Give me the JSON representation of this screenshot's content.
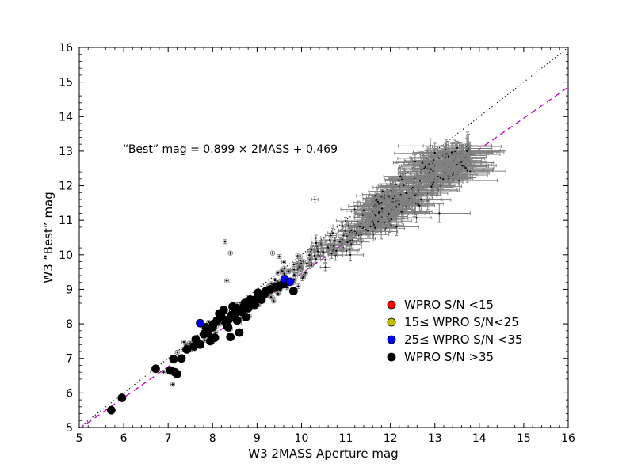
{
  "chart_data": {
    "type": "scatter",
    "title": "",
    "xlabel": "W3 2MASS Aperture mag",
    "ylabel": "W3 “Best” mag",
    "xlim": [
      5,
      16
    ],
    "ylim": [
      5,
      16
    ],
    "xticks": [
      "5",
      "6",
      "7",
      "8",
      "9",
      "10",
      "11",
      "12",
      "13",
      "14",
      "15",
      "16"
    ],
    "yticks": [
      "5",
      "6",
      "7",
      "8",
      "9",
      "10",
      "11",
      "12",
      "13",
      "14",
      "15",
      "16"
    ],
    "grid": false,
    "legend_position": "lower-right",
    "annotation": "“Best” mag = 0.899 × 2MASS + 0.469",
    "reference_lines": [
      {
        "style": "dotted",
        "color": "#000000",
        "slope": 1.0,
        "intercept": 0.0
      },
      {
        "style": "dashed",
        "color": "#bf00bf",
        "slope": 0.899,
        "intercept": 0.469
      }
    ],
    "legend": [
      {
        "label": "WPRO S/N <15",
        "color": "#ff0000"
      },
      {
        "label": "15≤ WPRO S/N<25",
        "color": "#bfbf00"
      },
      {
        "label": "25≤ WPRO S/N <35",
        "color": "#0000ff"
      },
      {
        "label": "WPRO S/N >35",
        "color": "#000000"
      }
    ],
    "series": [
      {
        "name": "WPRO S/N >35",
        "color": "#000000",
        "marker": "circle",
        "x": [
          5.72,
          5.96,
          6.72,
          7.05,
          7.12,
          7.2,
          7.15,
          7.3,
          7.42,
          7.58,
          7.62,
          7.72,
          7.8,
          7.85,
          7.9,
          7.95,
          8.0,
          8.02,
          8.05,
          8.1,
          8.15,
          8.2,
          8.25,
          8.3,
          8.35,
          8.38,
          8.42,
          8.45,
          8.5,
          8.52,
          8.55,
          8.6,
          8.65,
          8.7,
          8.72,
          8.75,
          8.8,
          8.85,
          8.9,
          8.95,
          9.0,
          9.02,
          9.05,
          9.1,
          9.15,
          9.2,
          9.3,
          9.4,
          9.5,
          9.6,
          9.82,
          8.4,
          8.32
        ],
        "y": [
          5.5,
          5.86,
          6.7,
          6.65,
          6.98,
          6.55,
          6.6,
          7.0,
          7.26,
          7.35,
          7.55,
          7.4,
          7.7,
          7.9,
          7.72,
          7.5,
          7.9,
          8.0,
          7.6,
          8.1,
          8.3,
          8.2,
          8.4,
          8.05,
          7.9,
          8.15,
          8.25,
          8.5,
          8.3,
          8.45,
          8.1,
          7.75,
          8.35,
          8.5,
          8.6,
          8.2,
          8.45,
          8.7,
          8.6,
          8.55,
          8.75,
          8.9,
          8.8,
          8.7,
          8.85,
          8.95,
          9.0,
          9.05,
          9.1,
          9.15,
          8.95,
          7.62,
          7.95
        ]
      },
      {
        "name": "25≤ WPRO S/N <35",
        "color": "#0000ff",
        "marker": "circle",
        "x": [
          7.72,
          9.62,
          9.74
        ],
        "y": [
          8.02,
          9.3,
          9.22
        ]
      },
      {
        "name": "WPRO S/N <15",
        "color": "#ff0000",
        "marker": "circle",
        "x": [],
        "y": []
      },
      {
        "name": "15≤ WPRO S/N<25",
        "color": "#bfbf00",
        "marker": "circle",
        "x": [],
        "y": []
      },
      {
        "name": "",
        "color": "#808080",
        "marker": "errorbar",
        "description": "dense cloud of small gray error-bar points along the 1:1 relation, x from about 7 to 14, error bars growing with magnitude",
        "x_range": [
          7.0,
          14.0
        ],
        "outliers": [
          {
            "x": 8.28,
            "y": 10.38
          },
          {
            "x": 8.32,
            "y": 9.25
          },
          {
            "x": 8.4,
            "y": 10.05
          },
          {
            "x": 9.35,
            "y": 10.05
          },
          {
            "x": 9.5,
            "y": 9.95
          },
          {
            "x": 10.3,
            "y": 11.6
          },
          {
            "x": 7.1,
            "y": 6.25
          },
          {
            "x": 6.9,
            "y": 6.6
          },
          {
            "x": 12.9,
            "y": 13.15
          },
          {
            "x": 13.0,
            "y": 12.95
          },
          {
            "x": 13.1,
            "y": 11.2
          },
          {
            "x": 11.8,
            "y": 11.5
          }
        ]
      }
    ]
  }
}
